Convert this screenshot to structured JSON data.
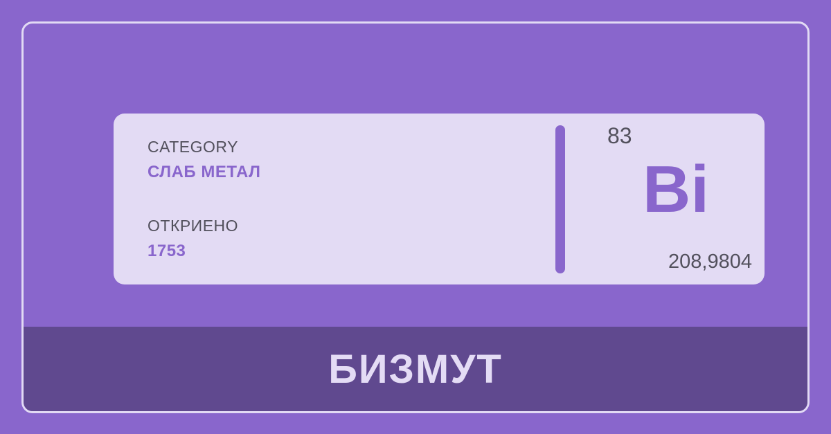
{
  "element": {
    "name": "БИЗМУТ",
    "symbol": "Bi",
    "atomic_number": "83",
    "atomic_mass": "208,9804"
  },
  "details": {
    "category_label": "CATEGORY",
    "category_value": "СЛАБ МЕТАЛ",
    "discovered_label": "ОТКРИЕНО",
    "discovered_value": "1753"
  },
  "colors": {
    "background": "#8966cc",
    "card": "#e3dbf4",
    "footer": "#60498f",
    "accent": "#8966cc",
    "text": "#52505c"
  }
}
